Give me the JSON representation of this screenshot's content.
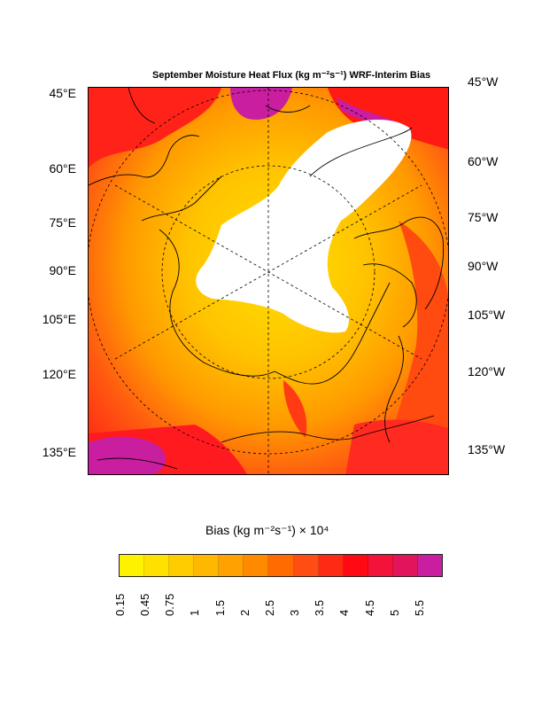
{
  "map": {
    "title": "September Moisture Heat Flux (kg m⁻²s⁻¹) WRF-Interim Bias",
    "left_labels": [
      "45°E",
      "60°E",
      "75°E",
      "90°E",
      "105°E",
      "120°E",
      "135°E"
    ],
    "right_labels": [
      "45°W",
      "60°W",
      "75°W",
      "90°W",
      "105°W",
      "120°W",
      "135°W"
    ],
    "palette": {
      "land_outline": "#000000",
      "no_data": "#ffffff",
      "low": "#ffee00",
      "high": "#c81e9f"
    }
  },
  "colorbar": {
    "title": "Bias (kg m⁻²s⁻¹) × 10⁴",
    "colors": [
      "#fff200",
      "#ffe000",
      "#ffcc00",
      "#ffb700",
      "#ffa100",
      "#ff8a00",
      "#ff6b00",
      "#ff4d14",
      "#ff2a14",
      "#ff0a14",
      "#f2123a",
      "#e2145c",
      "#c81e9f"
    ],
    "labels": [
      "0.15",
      "0.45",
      "0.75",
      "1",
      "1.5",
      "2",
      "2.5",
      "3",
      "3.5",
      "4",
      "4.5",
      "5",
      "5.5"
    ]
  }
}
